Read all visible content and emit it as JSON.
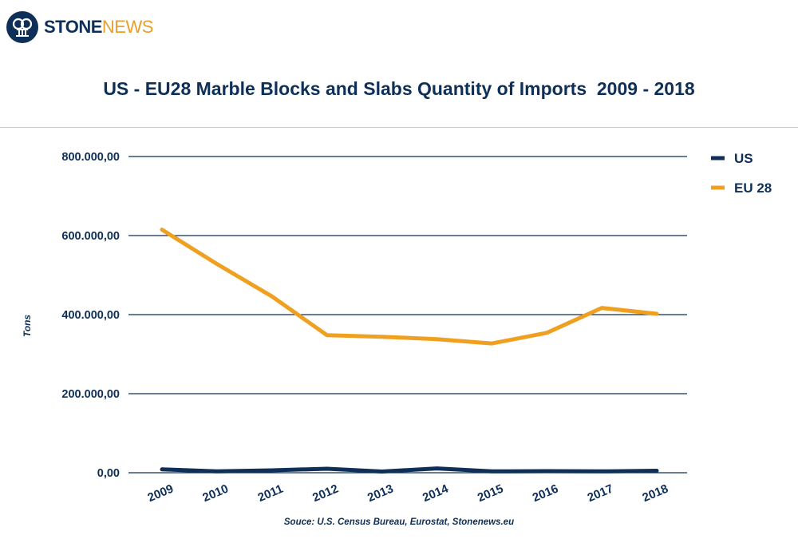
{
  "brand": {
    "name_part1": "STONE",
    "name_part2": "NEWS",
    "logo_icon": "stonenews-logo-icon",
    "primary_color": "#0e2f57",
    "accent_color": "#e7a02c"
  },
  "chart_data": {
    "type": "line",
    "title": "US - EU28 Marble Blocks and Slabs Quantity of Imports  2009 - 2018",
    "ylabel": "Tons",
    "source": "Souce: U.S. Census Bureau, Eurostat, Stonenews.eu",
    "categories": [
      "2009",
      "2010",
      "2011",
      "2012",
      "2013",
      "2014",
      "2015",
      "2016",
      "2017",
      "2018"
    ],
    "yticks": [
      "0,00",
      "200.000,00",
      "400.000,00",
      "600.000,00",
      "800.000,00"
    ],
    "ylim": [
      0,
      800000
    ],
    "grid": true,
    "legend_position": "top-right",
    "series": [
      {
        "name": "US",
        "color": "#0e2f57",
        "values": [
          8500,
          3500,
          6000,
          10000,
          3000,
          11000,
          3500,
          4000,
          3500,
          5000
        ]
      },
      {
        "name": "EU 28",
        "color": "#f0a020",
        "values": [
          615000,
          528000,
          446000,
          348000,
          344000,
          338000,
          327000,
          354000,
          417000,
          402000
        ]
      }
    ]
  }
}
